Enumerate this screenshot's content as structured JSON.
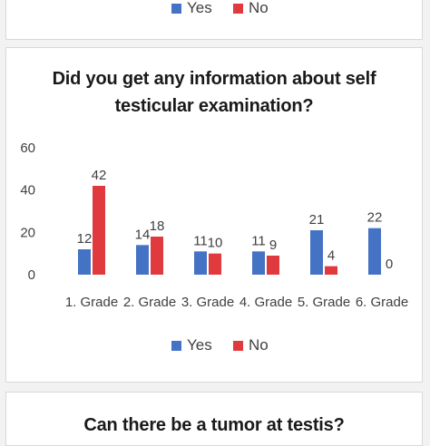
{
  "top_legend": {
    "yes_label": "Yes",
    "no_label": "No"
  },
  "colors": {
    "yes": "#4472c4",
    "no": "#e0393e"
  },
  "chart_data": {
    "type": "bar",
    "title_line1": "Did you get any information about self",
    "title_line2": "testicular examination?",
    "categories": [
      "1. Grade",
      "2. Grade",
      "3. Grade",
      "4. Grade",
      "5. Grade",
      "6. Grade"
    ],
    "series": [
      {
        "name": "Yes",
        "values": [
          12,
          14,
          11,
          11,
          21,
          22
        ]
      },
      {
        "name": "No",
        "values": [
          42,
          18,
          10,
          9,
          4,
          0
        ]
      }
    ],
    "ylim": [
      0,
      60
    ],
    "yticks": [
      0,
      20,
      40,
      60
    ],
    "grid": false,
    "legend_placement": "bottom"
  },
  "bottom_chart": {
    "title": "Can there be a tumor at testis?"
  }
}
